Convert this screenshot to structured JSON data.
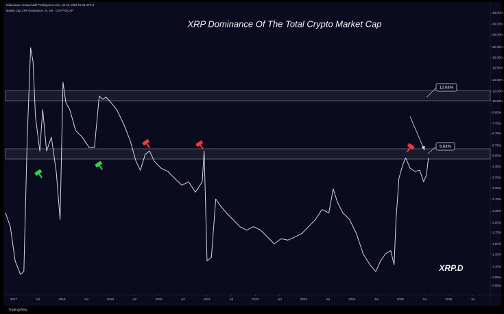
{
  "header": {
    "credit": "tradeviewer created with TradingView.com, Jul 18, 2025 15:48 UTC-4",
    "legend": "Market Cap XRP Dominance, %, 1W · CRYPTOCAP"
  },
  "chart_data": {
    "type": "line",
    "title": "XRP Dominance Of The Total Crypto Market Cap",
    "log_scale": true,
    "grid": false,
    "color": "#d6d6de",
    "x": [
      2016.83,
      2016.93,
      2017.03,
      2017.14,
      2017.21,
      2017.28,
      2017.35,
      2017.4,
      2017.45,
      2017.54,
      2017.6,
      2017.68,
      2017.78,
      2017.88,
      2017.96,
      2018.02,
      2018.08,
      2018.16,
      2018.28,
      2018.42,
      2018.56,
      2018.67,
      2018.77,
      2018.84,
      2018.91,
      2018.99,
      2019.13,
      2019.27,
      2019.41,
      2019.53,
      2019.62,
      2019.72,
      2019.81,
      2019.91,
      2020.05,
      2020.19,
      2020.33,
      2020.48,
      2020.62,
      2020.76,
      2020.9,
      2020.94,
      2021.0,
      2021.09,
      2021.18,
      2021.28,
      2021.4,
      2021.54,
      2021.68,
      2021.82,
      2021.96,
      2022.11,
      2022.25,
      2022.39,
      2022.53,
      2022.67,
      2022.82,
      2022.96,
      2023.1,
      2023.24,
      2023.38,
      2023.52,
      2023.61,
      2023.7,
      2023.81,
      2023.95,
      2024.09,
      2024.23,
      2024.37,
      2024.49,
      2024.59,
      2024.69,
      2024.8,
      2024.87,
      2024.91,
      2024.97,
      2025.05,
      2025.11,
      2025.2,
      2025.3,
      2025.4,
      2025.48,
      2025.54,
      2025.58
    ],
    "values": [
      2.29,
      1.9,
      1.19,
      0.99,
      1.03,
      6.43,
      21.8,
      18.0,
      8.52,
      5.33,
      9.37,
      5.33,
      6.43,
      4.03,
      2.09,
      13.6,
      10.3,
      9.37,
      7.06,
      6.43,
      5.59,
      5.59,
      11.3,
      10.8,
      11.1,
      10.5,
      9.37,
      7.76,
      6.14,
      4.63,
      4.1,
      5.09,
      5.33,
      4.63,
      4.22,
      4.03,
      3.67,
      3.34,
      3.5,
      3.04,
      3.5,
      5.33,
      1.19,
      1.25,
      2.77,
      2.52,
      2.29,
      2.09,
      1.9,
      1.81,
      1.9,
      1.81,
      1.65,
      1.5,
      1.61,
      1.58,
      1.65,
      1.73,
      1.9,
      2.09,
      2.4,
      2.29,
      3.18,
      2.64,
      2.29,
      2.09,
      1.73,
      1.31,
      1.13,
      1.03,
      1.19,
      1.31,
      1.37,
      1.13,
      2.09,
      3.67,
      4.42,
      4.85,
      4.22,
      4.03,
      4.1,
      3.5,
      3.84,
      4.85
    ],
    "xlim": [
      2016.83,
      2026.86
    ],
    "xticks": [
      2017,
      {
        "value": 2017.5,
        "label": "Jul"
      },
      2018,
      {
        "value": 2018.5,
        "label": "Jul"
      },
      2019,
      {
        "value": 2019.5,
        "label": "Jul"
      },
      2020,
      {
        "value": 2020.5,
        "label": "Jul"
      },
      2021,
      {
        "value": 2021.5,
        "label": "Jul"
      },
      2022,
      {
        "value": 2022.5,
        "label": "Jul"
      },
      2023,
      {
        "value": 2023.5,
        "label": "Jul"
      },
      2024,
      {
        "value": 2024.5,
        "label": "Jul"
      },
      2025,
      {
        "value": 2025.5,
        "label": "Jul"
      },
      2026,
      {
        "value": 2026.5,
        "label": "Jul"
      }
    ],
    "ylim": [
      0.75,
      39.5
    ],
    "yticks": [
      {
        "value": 35,
        "label": "35.00%"
      },
      {
        "value": 30,
        "label": "30.00%"
      },
      {
        "value": 26,
        "label": "26.00%"
      },
      {
        "value": 22,
        "label": "22.00%"
      },
      {
        "value": 19,
        "label": "19.00%"
      },
      {
        "value": 16.5,
        "label": "16.50%"
      },
      {
        "value": 14,
        "label": "14.00%"
      },
      {
        "value": 12,
        "label": "12.00%"
      },
      {
        "value": 10.5,
        "label": "10.50%"
      },
      {
        "value": 9,
        "label": "9.00%"
      },
      {
        "value": 7.75,
        "label": "7.75%"
      },
      {
        "value": 6.75,
        "label": "6.75%"
      },
      {
        "value": 5.75,
        "label": "5.75%"
      },
      {
        "value": 5,
        "label": "5.00%"
      },
      {
        "value": 4.3,
        "label": "4.30%"
      },
      {
        "value": 3.7,
        "label": "3.70%"
      },
      {
        "value": 3.2,
        "label": "3.20%"
      },
      {
        "value": 2.75,
        "label": "2.75%"
      },
      {
        "value": 2.35,
        "label": "2.35%"
      },
      {
        "value": 2,
        "label": "2.00%"
      },
      {
        "value": 1.75,
        "label": "1.75%"
      },
      {
        "value": 1.5,
        "label": "1.50%"
      },
      {
        "value": 1.3,
        "label": "1.30%"
      },
      {
        "value": 1.1,
        "label": "1.10%"
      },
      {
        "value": 0.95,
        "label": "0.95%"
      },
      {
        "value": 0.85,
        "label": "0.85%"
      }
    ],
    "annotations": [
      "12.64%",
      "5.64%",
      "XRP.D"
    ],
    "watermark": "TradingView"
  }
}
